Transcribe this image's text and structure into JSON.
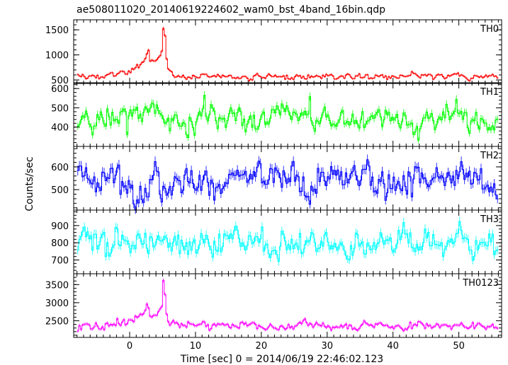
{
  "title": "ae508011020_20140619224602_wam0_bst_4band_16bin.qdp",
  "xlabel": "Time [sec] 0 = 2014/06/19 22:46:02.123",
  "ylabel": "Counts/sec",
  "chart_data": {
    "type": "line",
    "title": "ae508011020_20140619224602_wam0_bst_4band_16bin.qdp",
    "xlabel": "Time [sec] 0 = 2014/06/19 22:46:02.123",
    "ylabel": "Counts/sec",
    "xlim": [
      -8.5,
      56.5
    ],
    "x_ticks": [
      0,
      10,
      20,
      30,
      40,
      50
    ],
    "bin_sec": 0.25,
    "grid": false,
    "panels": [
      {
        "name": "TH0",
        "color": "#ff0000",
        "ylim": [
          430,
          1700
        ],
        "y_ticks": [
          500,
          1000,
          1500
        ],
        "baseline": 560,
        "noise": 40,
        "key_points": [
          [
            -8,
            560
          ],
          [
            -2,
            590
          ],
          [
            -1,
            650
          ],
          [
            0,
            720
          ],
          [
            1,
            760
          ],
          [
            2,
            860
          ],
          [
            2.5,
            1020
          ],
          [
            2.8,
            1120
          ],
          [
            3.0,
            850
          ],
          [
            3.8,
            860
          ],
          [
            4.5,
            920
          ],
          [
            4.9,
            1050
          ],
          [
            5.05,
            1680
          ],
          [
            5.3,
            1300
          ],
          [
            5.6,
            700
          ],
          [
            6.2,
            600
          ],
          [
            10,
            570
          ],
          [
            56,
            560
          ]
        ]
      },
      {
        "name": "TH1",
        "color": "#00ff00",
        "ylim": [
          300,
          630
        ],
        "y_ticks": [
          400,
          500,
          600
        ],
        "baseline": 430,
        "noise": 45,
        "key_points": [
          [
            -8,
            430
          ],
          [
            0,
            440
          ],
          [
            5,
            460
          ],
          [
            56,
            430
          ]
        ]
      },
      {
        "name": "TH2",
        "color": "#0000ff",
        "ylim": [
          410,
          690
        ],
        "y_ticks": [
          500,
          600
        ],
        "baseline": 545,
        "noise": 45,
        "key_points": [
          [
            -8,
            545
          ],
          [
            56,
            545
          ]
        ]
      },
      {
        "name": "TH3",
        "color": "#00ffff",
        "ylim": [
          620,
          990
        ],
        "y_ticks": [
          700,
          800,
          900
        ],
        "baseline": 805,
        "noise": 55,
        "key_points": [
          [
            -8,
            805
          ],
          [
            56,
            805
          ]
        ]
      },
      {
        "name": "TH0123",
        "color": "#ff00ff",
        "ylim": [
          2040,
          3800
        ],
        "y_ticks": [
          2500,
          3000,
          3500
        ],
        "baseline": 2360,
        "noise": 70,
        "key_points": [
          [
            -8,
            2330
          ],
          [
            -2,
            2400
          ],
          [
            0,
            2520
          ],
          [
            2,
            2660
          ],
          [
            2.6,
            2950
          ],
          [
            3.0,
            2620
          ],
          [
            4.0,
            2700
          ],
          [
            4.8,
            2850
          ],
          [
            5.05,
            3800
          ],
          [
            5.3,
            3000
          ],
          [
            5.7,
            2450
          ],
          [
            7,
            2380
          ],
          [
            56,
            2360
          ]
        ]
      }
    ]
  }
}
